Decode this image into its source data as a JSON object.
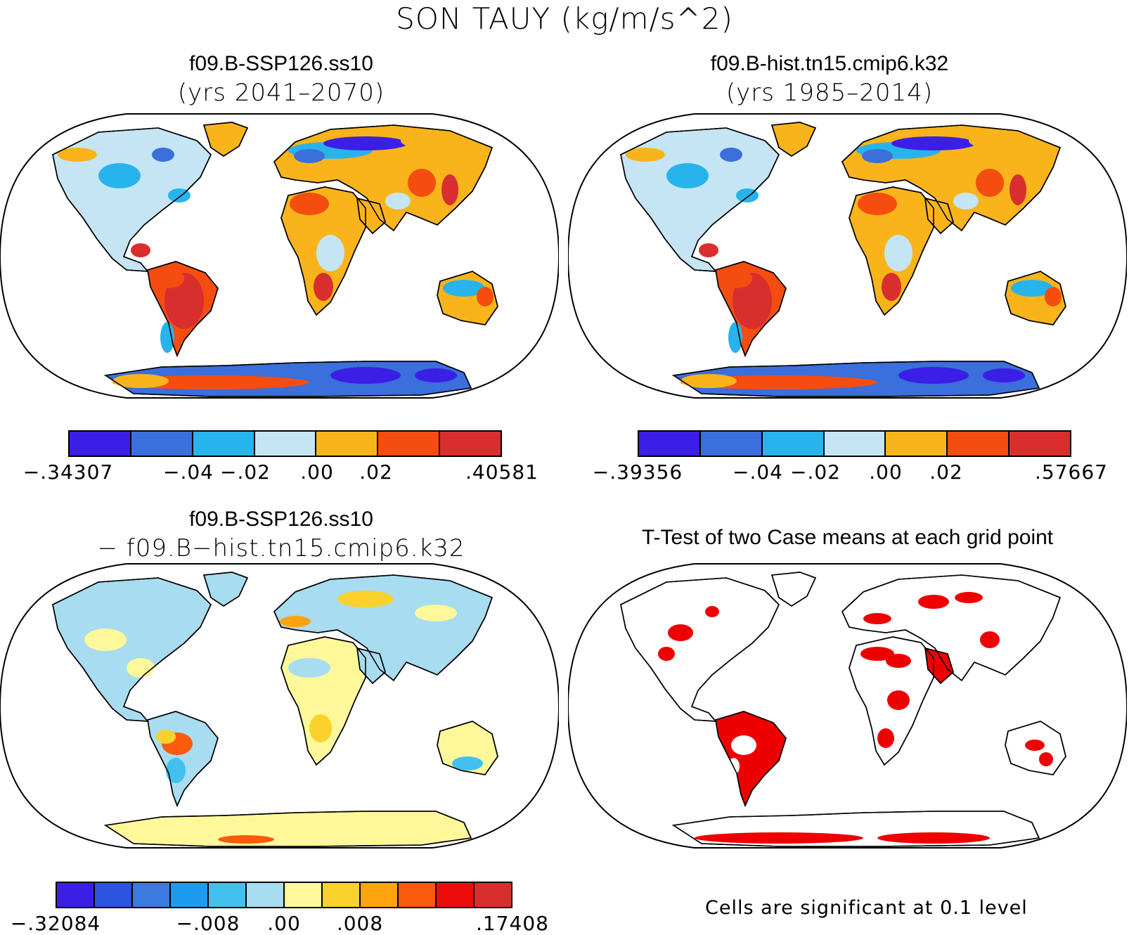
{
  "figure": {
    "title": "SON TAUY (kg/m/s^2)"
  },
  "panels": [
    {
      "title": "f09.B-SSP126.ss10",
      "subtitle": "(yrs 2041–2070)",
      "colorbar": {
        "colors": [
          "#3b1fe6",
          "#3a6fdc",
          "#27b4ec",
          "#c5e5f5",
          "#f8b41a",
          "#f54d10",
          "#d92e2e"
        ],
        "labels": [
          "−.34307",
          "−.04",
          "−.02",
          ".00",
          ".02",
          ".40581"
        ]
      }
    },
    {
      "title": "f09.B-hist.tn15.cmip6.k32",
      "subtitle": "(yrs 1985–2014)",
      "colorbar": {
        "colors": [
          "#3b1fe6",
          "#3a6fdc",
          "#27b4ec",
          "#c5e5f5",
          "#f8b41a",
          "#f54d10",
          "#d92e2e"
        ],
        "labels": [
          "−.39356",
          "−.04",
          "−.02",
          ".00",
          ".02",
          ".57667"
        ]
      }
    },
    {
      "title": "f09.B-SSP126.ss10",
      "subtitle": "− f09.B−hist.tn15.cmip6.k32",
      "colorbar": {
        "colors": [
          "#3b1fe6",
          "#2b55e0",
          "#3a7be0",
          "#1d9bf0",
          "#42c0f0",
          "#a8dcf0",
          "#fff89a",
          "#fbd22c",
          "#fca30e",
          "#fa5a0c",
          "#ec0c0c",
          "#d92e2e"
        ],
        "labels": [
          "−.32084",
          "−.008",
          ".00",
          ".008",
          ".17408"
        ]
      }
    },
    {
      "title": "T-Test of two Case means at each grid point",
      "note": "Cells are significant at 0.1 level",
      "significance_color": "#ee0000"
    }
  ]
}
